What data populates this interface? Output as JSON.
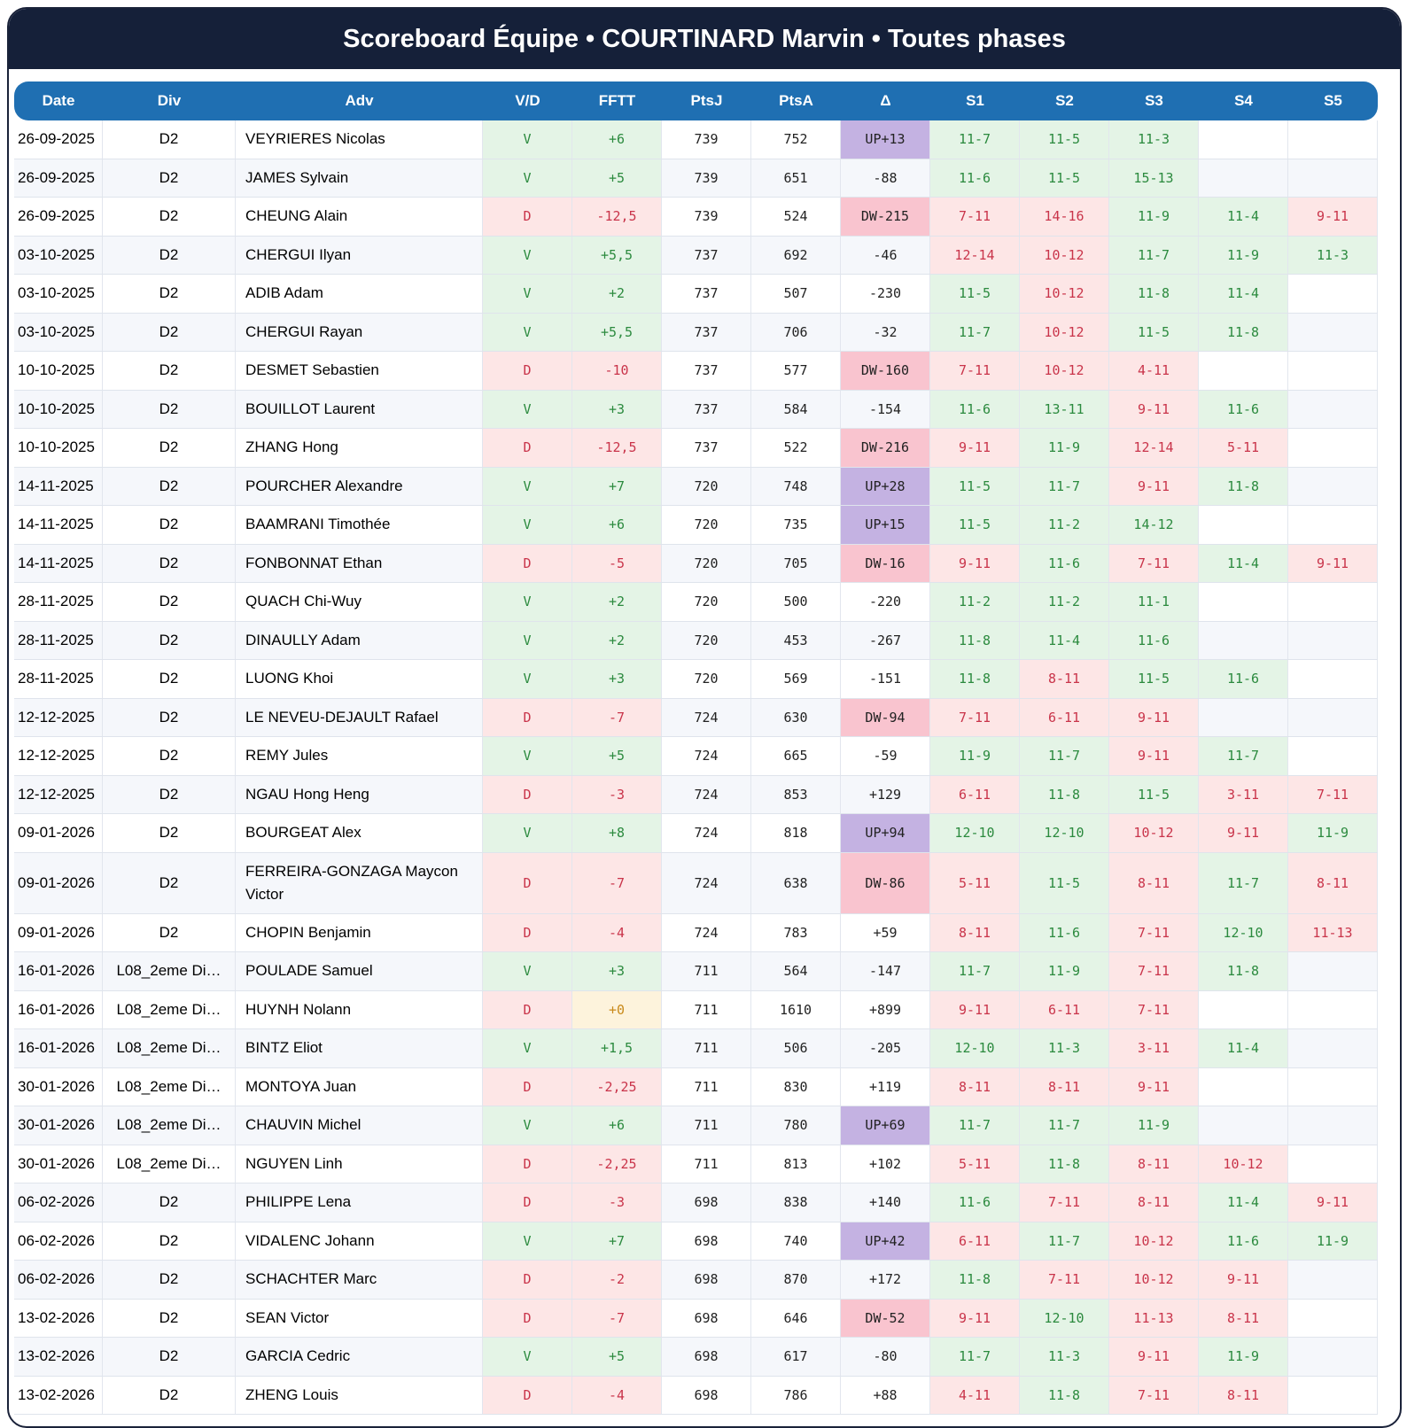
{
  "title": "Scoreboard Équipe • COURTINARD Marvin • Toutes phases",
  "columns": [
    "Date",
    "Div",
    "Adv",
    "V/D",
    "FFTT",
    "PtsJ",
    "PtsA",
    "Δ",
    "S1",
    "S2",
    "S3",
    "S4",
    "S5"
  ],
  "colors": {
    "header_bg": "#152039",
    "table_header_bg": "#1f6fb2",
    "win_bg": "#e4f4e6",
    "loss_bg": "#fde6e6",
    "up_bg": "#c4b2e2",
    "dw_bg": "#f9c4cf",
    "zero_bg": "#fdf3dc"
  },
  "rows": [
    {
      "date": "26-09-2025",
      "div": "D2",
      "adv": "VEYRIERES Nicolas",
      "vd": "V",
      "fftt": "+6",
      "ptsj": "739",
      "ptsa": "752",
      "delta": "UP+13",
      "sets": [
        "11-7",
        "11-5",
        "11-3",
        "",
        ""
      ]
    },
    {
      "date": "26-09-2025",
      "div": "D2",
      "adv": "JAMES Sylvain",
      "vd": "V",
      "fftt": "+5",
      "ptsj": "739",
      "ptsa": "651",
      "delta": "-88",
      "sets": [
        "11-6",
        "11-5",
        "15-13",
        "",
        ""
      ]
    },
    {
      "date": "26-09-2025",
      "div": "D2",
      "adv": "CHEUNG Alain",
      "vd": "D",
      "fftt": "-12,5",
      "ptsj": "739",
      "ptsa": "524",
      "delta": "DW-215",
      "sets": [
        "7-11",
        "14-16",
        "11-9",
        "11-4",
        "9-11"
      ]
    },
    {
      "date": "03-10-2025",
      "div": "D2",
      "adv": "CHERGUI Ilyan",
      "vd": "V",
      "fftt": "+5,5",
      "ptsj": "737",
      "ptsa": "692",
      "delta": "-46",
      "sets": [
        "12-14",
        "10-12",
        "11-7",
        "11-9",
        "11-3"
      ]
    },
    {
      "date": "03-10-2025",
      "div": "D2",
      "adv": "ADIB Adam",
      "vd": "V",
      "fftt": "+2",
      "ptsj": "737",
      "ptsa": "507",
      "delta": "-230",
      "sets": [
        "11-5",
        "10-12",
        "11-8",
        "11-4",
        ""
      ]
    },
    {
      "date": "03-10-2025",
      "div": "D2",
      "adv": "CHERGUI Rayan",
      "vd": "V",
      "fftt": "+5,5",
      "ptsj": "737",
      "ptsa": "706",
      "delta": "-32",
      "sets": [
        "11-7",
        "10-12",
        "11-5",
        "11-8",
        ""
      ]
    },
    {
      "date": "10-10-2025",
      "div": "D2",
      "adv": "DESMET Sebastien",
      "vd": "D",
      "fftt": "-10",
      "ptsj": "737",
      "ptsa": "577",
      "delta": "DW-160",
      "sets": [
        "7-11",
        "10-12",
        "4-11",
        "",
        ""
      ]
    },
    {
      "date": "10-10-2025",
      "div": "D2",
      "adv": "BOUILLOT Laurent",
      "vd": "V",
      "fftt": "+3",
      "ptsj": "737",
      "ptsa": "584",
      "delta": "-154",
      "sets": [
        "11-6",
        "13-11",
        "9-11",
        "11-6",
        ""
      ]
    },
    {
      "date": "10-10-2025",
      "div": "D2",
      "adv": "ZHANG Hong",
      "vd": "D",
      "fftt": "-12,5",
      "ptsj": "737",
      "ptsa": "522",
      "delta": "DW-216",
      "sets": [
        "9-11",
        "11-9",
        "12-14",
        "5-11",
        ""
      ]
    },
    {
      "date": "14-11-2025",
      "div": "D2",
      "adv": "POURCHER Alexandre",
      "vd": "V",
      "fftt": "+7",
      "ptsj": "720",
      "ptsa": "748",
      "delta": "UP+28",
      "sets": [
        "11-5",
        "11-7",
        "9-11",
        "11-8",
        ""
      ]
    },
    {
      "date": "14-11-2025",
      "div": "D2",
      "adv": "BAAMRANI Timothée",
      "vd": "V",
      "fftt": "+6",
      "ptsj": "720",
      "ptsa": "735",
      "delta": "UP+15",
      "sets": [
        "11-5",
        "11-2",
        "14-12",
        "",
        ""
      ]
    },
    {
      "date": "14-11-2025",
      "div": "D2",
      "adv": "FONBONNAT Ethan",
      "vd": "D",
      "fftt": "-5",
      "ptsj": "720",
      "ptsa": "705",
      "delta": "DW-16",
      "sets": [
        "9-11",
        "11-6",
        "7-11",
        "11-4",
        "9-11"
      ]
    },
    {
      "date": "28-11-2025",
      "div": "D2",
      "adv": "QUACH Chi-Wuy",
      "vd": "V",
      "fftt": "+2",
      "ptsj": "720",
      "ptsa": "500",
      "delta": "-220",
      "sets": [
        "11-2",
        "11-2",
        "11-1",
        "",
        ""
      ]
    },
    {
      "date": "28-11-2025",
      "div": "D2",
      "adv": "DINAULLY Adam",
      "vd": "V",
      "fftt": "+2",
      "ptsj": "720",
      "ptsa": "453",
      "delta": "-267",
      "sets": [
        "11-8",
        "11-4",
        "11-6",
        "",
        ""
      ]
    },
    {
      "date": "28-11-2025",
      "div": "D2",
      "adv": "LUONG Khoi",
      "vd": "V",
      "fftt": "+3",
      "ptsj": "720",
      "ptsa": "569",
      "delta": "-151",
      "sets": [
        "11-8",
        "8-11",
        "11-5",
        "11-6",
        ""
      ]
    },
    {
      "date": "12-12-2025",
      "div": "D2",
      "adv": "LE NEVEU-DEJAULT Rafael",
      "vd": "D",
      "fftt": "-7",
      "ptsj": "724",
      "ptsa": "630",
      "delta": "DW-94",
      "sets": [
        "7-11",
        "6-11",
        "9-11",
        "",
        ""
      ]
    },
    {
      "date": "12-12-2025",
      "div": "D2",
      "adv": "REMY Jules",
      "vd": "V",
      "fftt": "+5",
      "ptsj": "724",
      "ptsa": "665",
      "delta": "-59",
      "sets": [
        "11-9",
        "11-7",
        "9-11",
        "11-7",
        ""
      ]
    },
    {
      "date": "12-12-2025",
      "div": "D2",
      "adv": "NGAU Hong Heng",
      "vd": "D",
      "fftt": "-3",
      "ptsj": "724",
      "ptsa": "853",
      "delta": "+129",
      "sets": [
        "6-11",
        "11-8",
        "11-5",
        "3-11",
        "7-11"
      ]
    },
    {
      "date": "09-01-2026",
      "div": "D2",
      "adv": "BOURGEAT Alex",
      "vd": "V",
      "fftt": "+8",
      "ptsj": "724",
      "ptsa": "818",
      "delta": "UP+94",
      "sets": [
        "12-10",
        "12-10",
        "10-12",
        "9-11",
        "11-9"
      ]
    },
    {
      "date": "09-01-2026",
      "div": "D2",
      "adv": "FERREIRA-GONZAGA Maycon Victor",
      "vd": "D",
      "fftt": "-7",
      "ptsj": "724",
      "ptsa": "638",
      "delta": "DW-86",
      "sets": [
        "5-11",
        "11-5",
        "8-11",
        "11-7",
        "8-11"
      ],
      "tall": true
    },
    {
      "date": "09-01-2026",
      "div": "D2",
      "adv": "CHOPIN Benjamin",
      "vd": "D",
      "fftt": "-4",
      "ptsj": "724",
      "ptsa": "783",
      "delta": "+59",
      "sets": [
        "8-11",
        "11-6",
        "7-11",
        "12-10",
        "11-13"
      ]
    },
    {
      "date": "16-01-2026",
      "div": "L08_2eme Di…",
      "adv": "POULADE Samuel",
      "vd": "V",
      "fftt": "+3",
      "ptsj": "711",
      "ptsa": "564",
      "delta": "-147",
      "sets": [
        "11-7",
        "11-9",
        "7-11",
        "11-8",
        ""
      ]
    },
    {
      "date": "16-01-2026",
      "div": "L08_2eme Di…",
      "adv": "HUYNH Nolann",
      "vd": "D",
      "fftt": "+0",
      "ptsj": "711",
      "ptsa": "1610",
      "delta": "+899",
      "sets": [
        "9-11",
        "6-11",
        "7-11",
        "",
        ""
      ]
    },
    {
      "date": "16-01-2026",
      "div": "L08_2eme Di…",
      "adv": "BINTZ Eliot",
      "vd": "V",
      "fftt": "+1,5",
      "ptsj": "711",
      "ptsa": "506",
      "delta": "-205",
      "sets": [
        "12-10",
        "11-3",
        "3-11",
        "11-4",
        ""
      ]
    },
    {
      "date": "30-01-2026",
      "div": "L08_2eme Di…",
      "adv": "MONTOYA Juan",
      "vd": "D",
      "fftt": "-2,25",
      "ptsj": "711",
      "ptsa": "830",
      "delta": "+119",
      "sets": [
        "8-11",
        "8-11",
        "9-11",
        "",
        ""
      ]
    },
    {
      "date": "30-01-2026",
      "div": "L08_2eme Di…",
      "adv": "CHAUVIN Michel",
      "vd": "V",
      "fftt": "+6",
      "ptsj": "711",
      "ptsa": "780",
      "delta": "UP+69",
      "sets": [
        "11-7",
        "11-7",
        "11-9",
        "",
        ""
      ]
    },
    {
      "date": "30-01-2026",
      "div": "L08_2eme Di…",
      "adv": "NGUYEN Linh",
      "vd": "D",
      "fftt": "-2,25",
      "ptsj": "711",
      "ptsa": "813",
      "delta": "+102",
      "sets": [
        "5-11",
        "11-8",
        "8-11",
        "10-12",
        ""
      ]
    },
    {
      "date": "06-02-2026",
      "div": "D2",
      "adv": "PHILIPPE Lena",
      "vd": "D",
      "fftt": "-3",
      "ptsj": "698",
      "ptsa": "838",
      "delta": "+140",
      "sets": [
        "11-6",
        "7-11",
        "8-11",
        "11-4",
        "9-11"
      ]
    },
    {
      "date": "06-02-2026",
      "div": "D2",
      "adv": "VIDALENC Johann",
      "vd": "V",
      "fftt": "+7",
      "ptsj": "698",
      "ptsa": "740",
      "delta": "UP+42",
      "sets": [
        "6-11",
        "11-7",
        "10-12",
        "11-6",
        "11-9"
      ]
    },
    {
      "date": "06-02-2026",
      "div": "D2",
      "adv": "SCHACHTER Marc",
      "vd": "D",
      "fftt": "-2",
      "ptsj": "698",
      "ptsa": "870",
      "delta": "+172",
      "sets": [
        "11-8",
        "7-11",
        "10-12",
        "9-11",
        ""
      ]
    },
    {
      "date": "13-02-2026",
      "div": "D2",
      "adv": "SEAN Victor",
      "vd": "D",
      "fftt": "-7",
      "ptsj": "698",
      "ptsa": "646",
      "delta": "DW-52",
      "sets": [
        "9-11",
        "12-10",
        "11-13",
        "8-11",
        ""
      ]
    },
    {
      "date": "13-02-2026",
      "div": "D2",
      "adv": "GARCIA Cedric",
      "vd": "V",
      "fftt": "+5",
      "ptsj": "698",
      "ptsa": "617",
      "delta": "-80",
      "sets": [
        "11-7",
        "11-3",
        "9-11",
        "11-9",
        ""
      ]
    },
    {
      "date": "13-02-2026",
      "div": "D2",
      "adv": "ZHENG Louis",
      "vd": "D",
      "fftt": "-4",
      "ptsj": "698",
      "ptsa": "786",
      "delta": "+88",
      "sets": [
        "4-11",
        "11-8",
        "7-11",
        "8-11",
        ""
      ]
    }
  ]
}
